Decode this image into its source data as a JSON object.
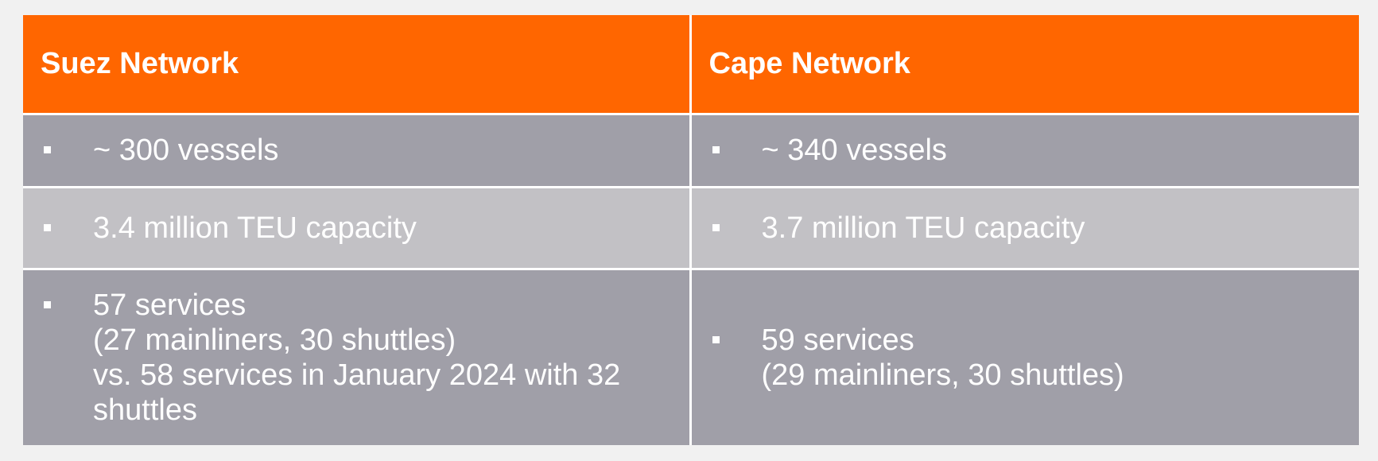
{
  "table": {
    "headers": [
      "Suez Network",
      "Cape Network"
    ],
    "rows": [
      {
        "suez": [
          "~ 300 vessels"
        ],
        "cape": [
          "~ 340 vessels"
        ]
      },
      {
        "suez": [
          "3.4 million TEU capacity"
        ],
        "cape": [
          "3.7 million TEU capacity"
        ]
      },
      {
        "suez": [
          "57 services",
          "(27 mainliners, 30 shuttles)",
          "vs. 58 services in January 2024 with 32",
          "shuttles"
        ],
        "cape": [
          "59 services",
          "(29 mainliners, 30 shuttles)"
        ]
      }
    ]
  },
  "colors": {
    "header_bg": "#ff6600",
    "row_dark": "#a09fa8",
    "row_light": "#c2c1c5",
    "text": "#ffffff",
    "bullet_icon": "square-bullet-icon"
  }
}
